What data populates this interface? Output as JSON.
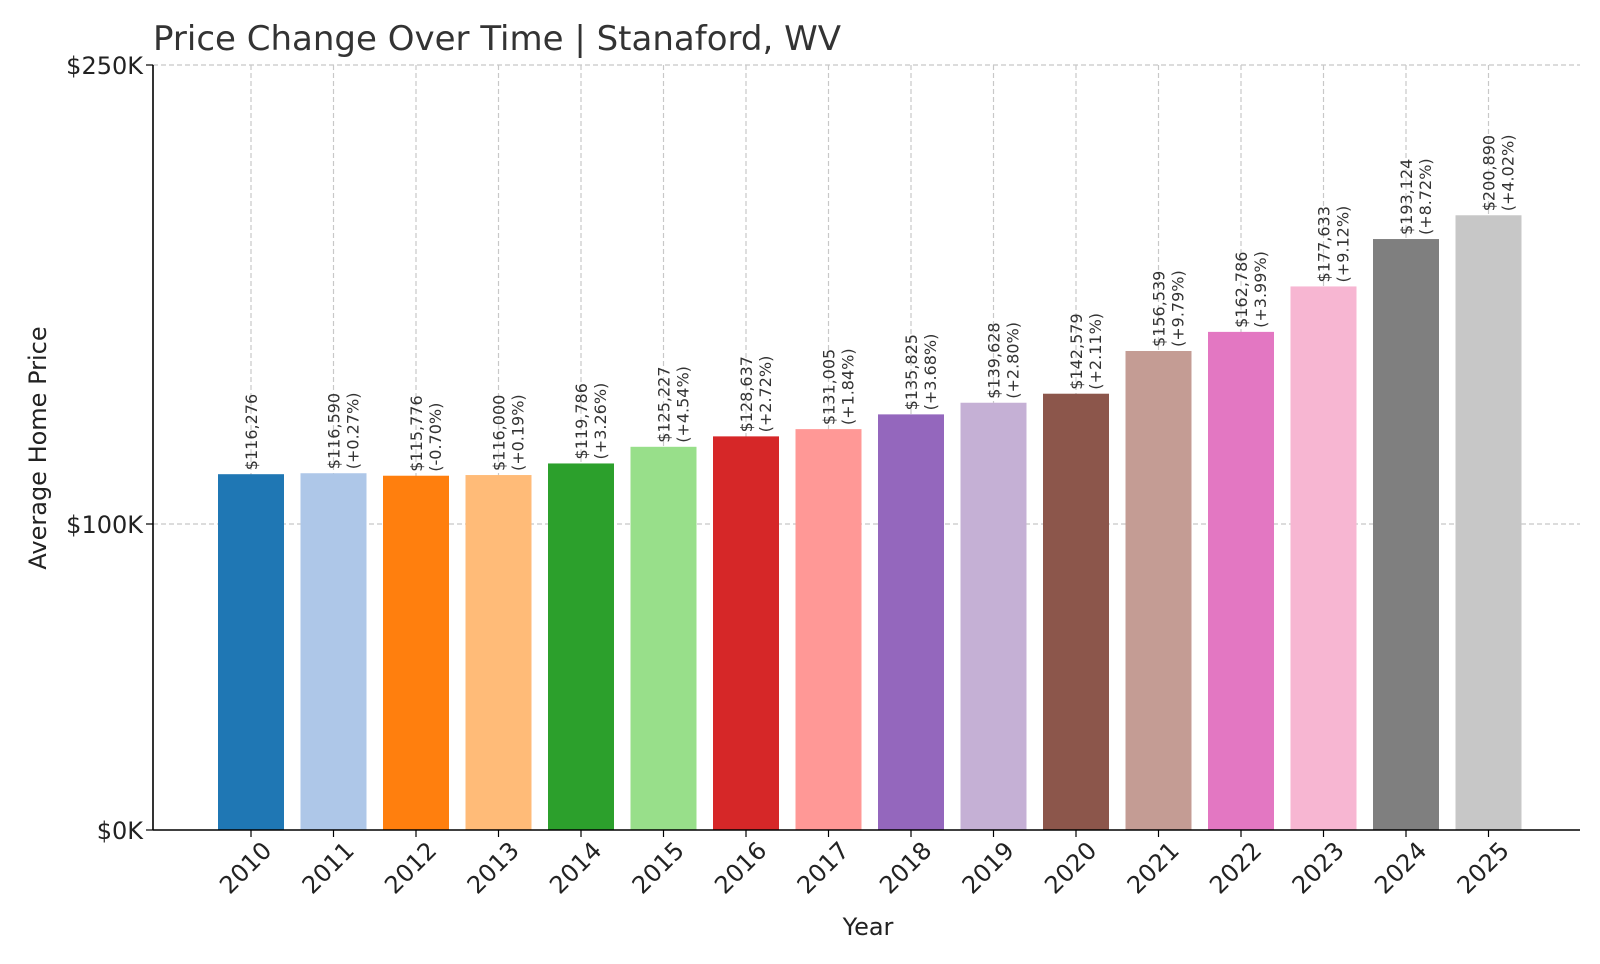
{
  "chart_data": {
    "type": "bar",
    "title": "Price Change Over Time | Stanaford, WV",
    "xlabel": "Year",
    "ylabel": "Average Home Price",
    "ylim": [
      0,
      250000
    ],
    "y_ticks": [
      {
        "value": 0,
        "label": "$0K"
      },
      {
        "value": 100000,
        "label": "$100K"
      },
      {
        "value": 250000,
        "label": "$250K"
      }
    ],
    "grid": true,
    "categories": [
      "2010",
      "2011",
      "2012",
      "2013",
      "2014",
      "2015",
      "2016",
      "2017",
      "2018",
      "2019",
      "2020",
      "2021",
      "2022",
      "2023",
      "2024",
      "2025"
    ],
    "values": [
      116276,
      116590,
      115776,
      116000,
      119786,
      125227,
      128637,
      131005,
      135825,
      139628,
      142579,
      156539,
      162786,
      177633,
      193124,
      200890
    ],
    "value_labels": [
      "$116,276",
      "$116,590",
      "$115,776",
      "$116,000",
      "$119,786",
      "$125,227",
      "$128,637",
      "$131,005",
      "$135,825",
      "$139,628",
      "$142,579",
      "$156,539",
      "$162,786",
      "$177,633",
      "$193,124",
      "$200,890"
    ],
    "change_labels": [
      "",
      "(+0.27%)",
      "(-0.70%)",
      "(+0.19%)",
      "(+3.26%)",
      "(+4.54%)",
      "(+2.72%)",
      "(+1.84%)",
      "(+3.68%)",
      "(+2.80%)",
      "(+2.11%)",
      "(+9.79%)",
      "(+3.99%)",
      "(+9.12%)",
      "(+8.72%)",
      "(+4.02%)"
    ],
    "colors": [
      "#1f77b4",
      "#aec7e8",
      "#ff7f0e",
      "#ffbb78",
      "#2ca02c",
      "#98df8a",
      "#d62728",
      "#ff9896",
      "#9467bd",
      "#c5b0d5",
      "#8c564b",
      "#c49c94",
      "#e377c2",
      "#f7b6d2",
      "#7f7f7f",
      "#c7c7c7"
    ]
  }
}
